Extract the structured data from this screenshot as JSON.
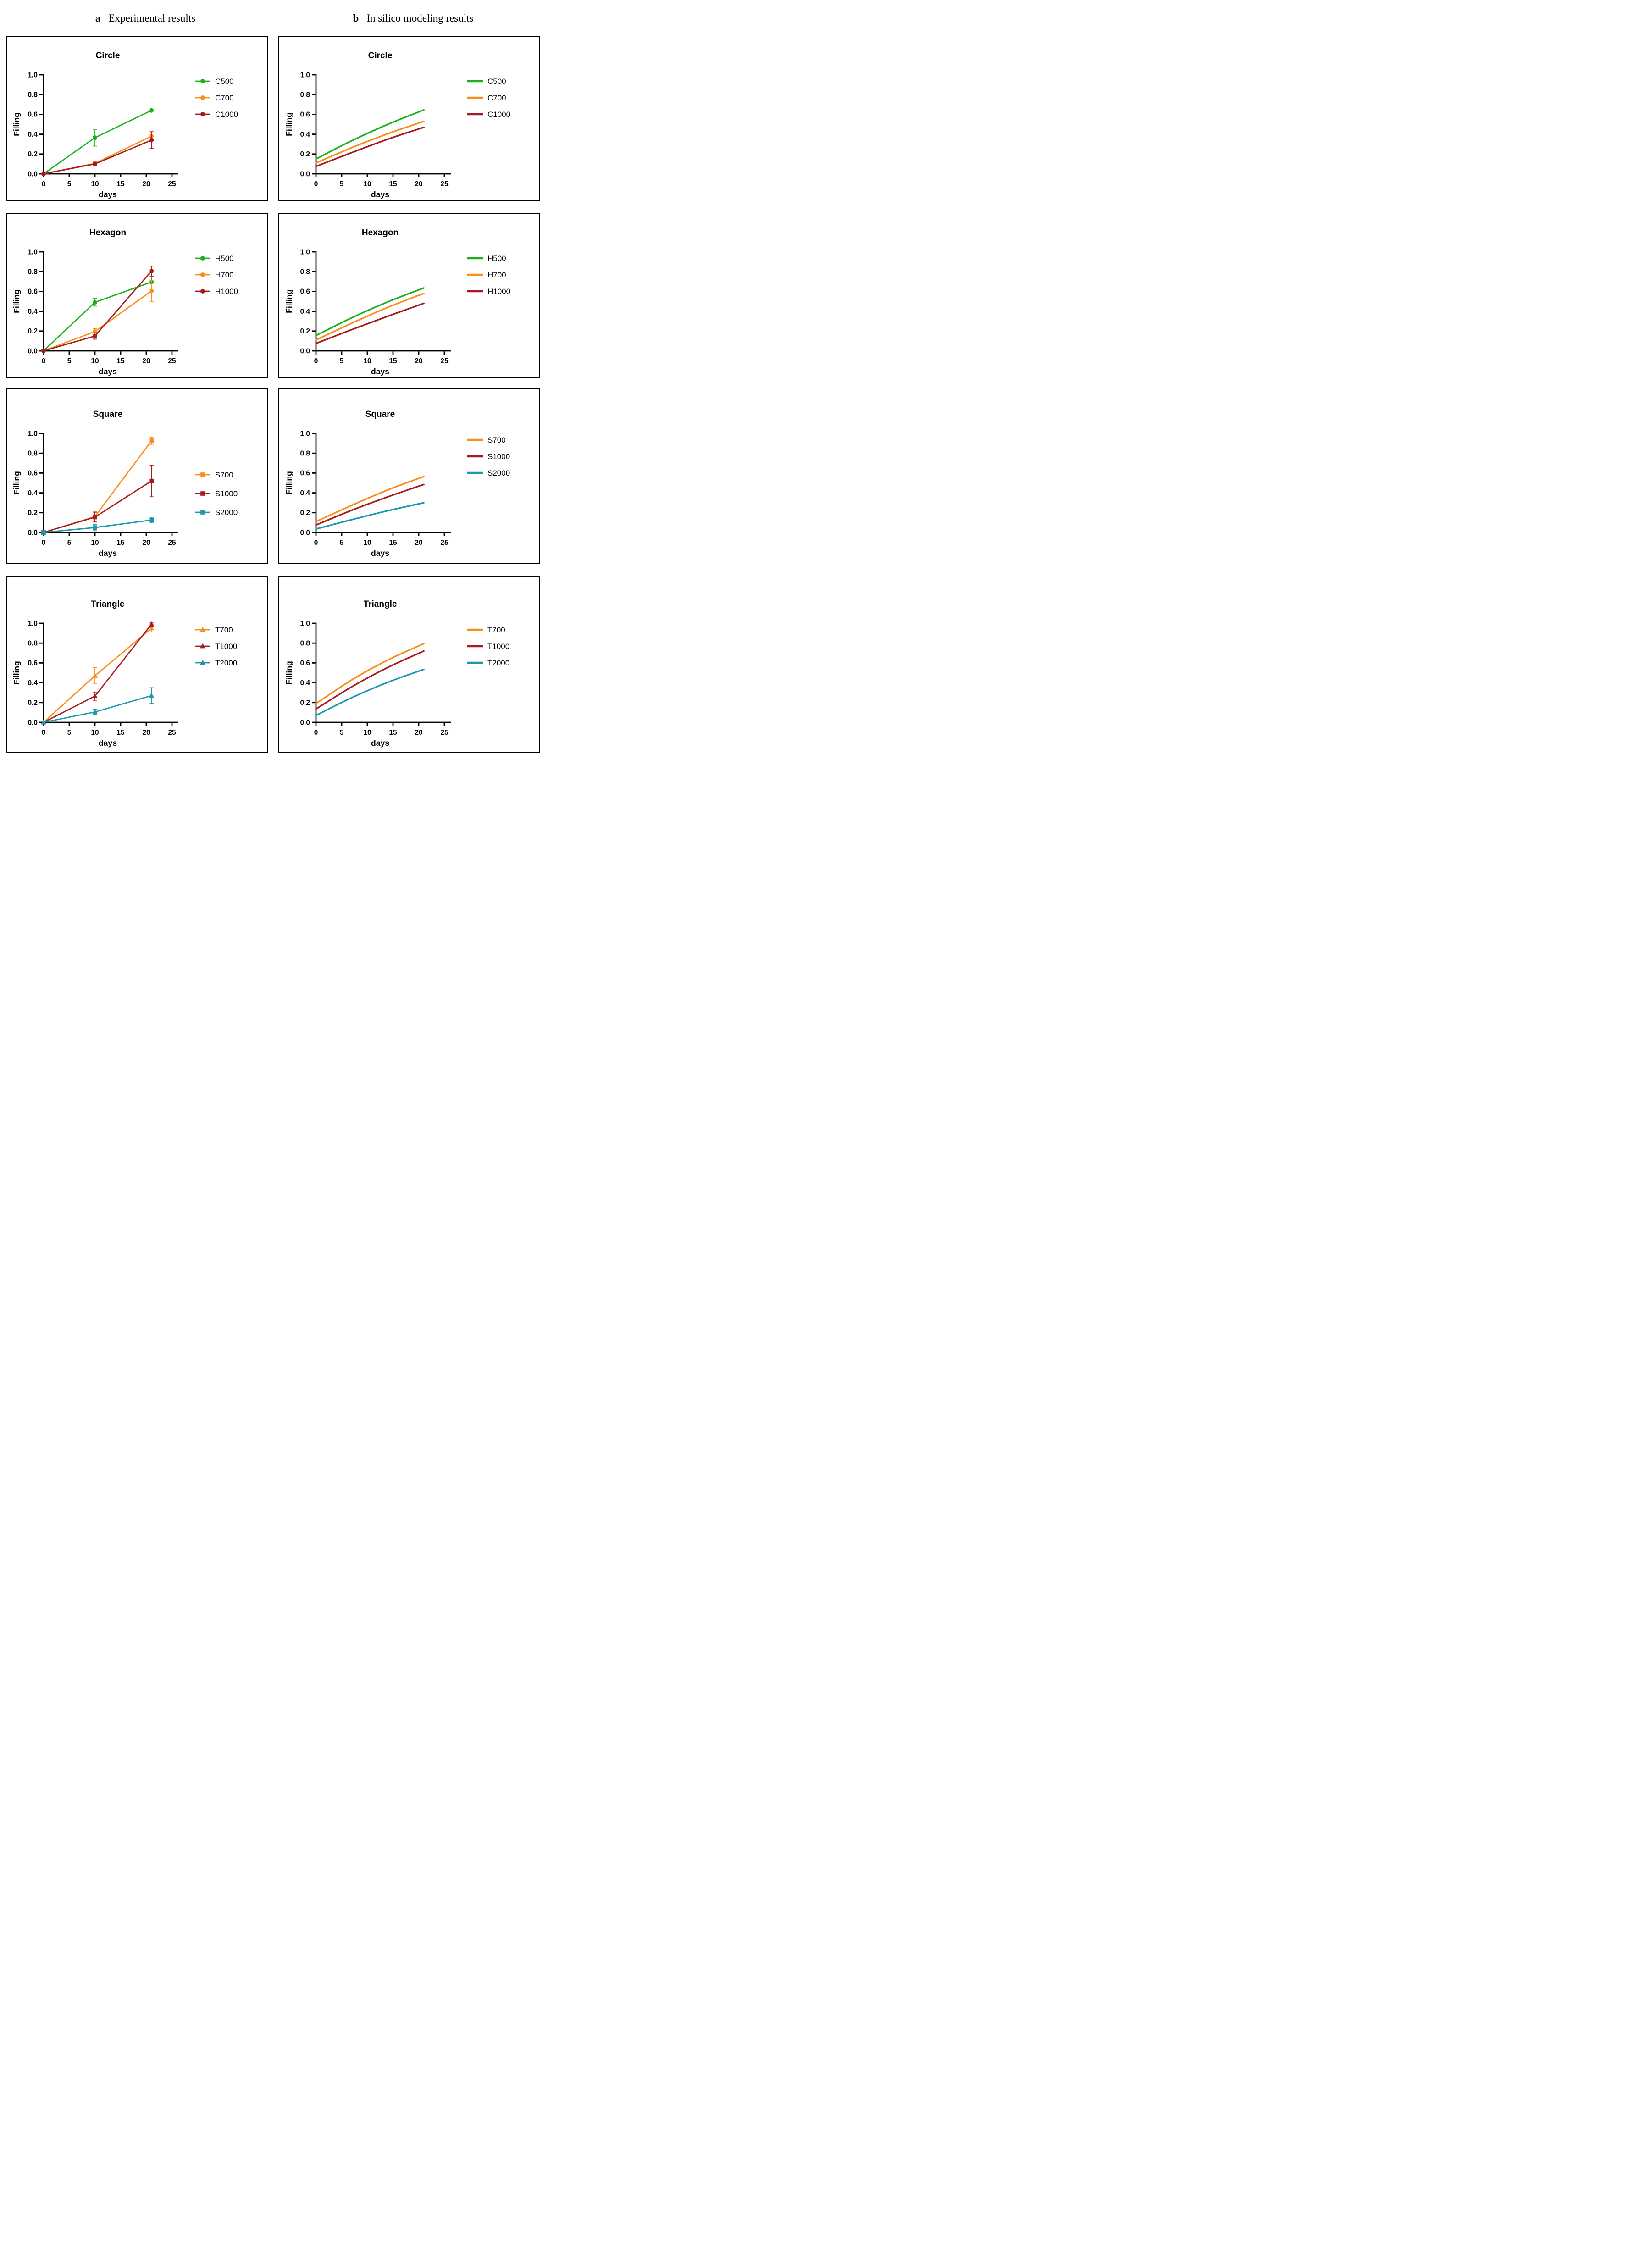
{
  "header": {
    "label_a": "a",
    "title_a": "Experimental results",
    "label_b": "b",
    "title_b": "In silico modeling results"
  },
  "colors": {
    "green": "#1CB01C",
    "orange": "#FA8E1C",
    "dark_red": "#A51C1C",
    "teal": "#1B97AE",
    "axis": "#000000",
    "text": "#000000",
    "panel_border": "#000000",
    "background": "#FFFFFF"
  },
  "chart_data": [
    {
      "id": "circle-experimental",
      "column": "a",
      "type": "line",
      "style": "experimental",
      "title": "Circle",
      "xlabel": "days",
      "ylabel": "Filling",
      "xticks": [
        0,
        5,
        10,
        15,
        20,
        25
      ],
      "ytick_labels": [
        "0.0",
        "0.2",
        "0.4",
        "0.6",
        "0.8",
        "1.0"
      ],
      "xlim": [
        0,
        26.3
      ],
      "ylim": [
        0,
        1
      ],
      "grid": false,
      "marker": "circle",
      "legend_position": "upper-right",
      "x": [
        0,
        10,
        21
      ],
      "series": [
        {
          "name": "C500",
          "color": "#1CB01C",
          "y": [
            0,
            0.365,
            0.64
          ],
          "err": [
            0,
            0.085,
            0
          ]
        },
        {
          "name": "C700",
          "color": "#FA8E1C",
          "y": [
            0,
            0.105,
            0.38
          ],
          "err": [
            0,
            0.02,
            0.045
          ]
        },
        {
          "name": "C1000",
          "color": "#A51C1C",
          "y": [
            0,
            0.1,
            0.34
          ],
          "err": [
            0,
            0.015,
            0.085
          ]
        }
      ]
    },
    {
      "id": "circle-model",
      "column": "b",
      "type": "line",
      "style": "model",
      "title": "Circle",
      "xlabel": "days",
      "ylabel": "Filling",
      "xticks": [
        0,
        5,
        10,
        15,
        20,
        25
      ],
      "ytick_labels": [
        "0.0",
        "0.2",
        "0.4",
        "0.6",
        "0.8",
        "1.0"
      ],
      "xlim": [
        0,
        26.3
      ],
      "ylim": [
        0,
        1
      ],
      "grid": false,
      "marker": null,
      "legend_position": "upper-right",
      "x": [
        0,
        7,
        14,
        21
      ],
      "series": [
        {
          "name": "C500",
          "color": "#1CB01C",
          "y": [
            0.15,
            0.335,
            0.5,
            0.645
          ]
        },
        {
          "name": "C700",
          "color": "#FA8E1C",
          "y": [
            0.11,
            0.265,
            0.405,
            0.53
          ]
        },
        {
          "name": "C1000",
          "color": "#A51C1C",
          "y": [
            0.075,
            0.215,
            0.35,
            0.47
          ]
        }
      ]
    },
    {
      "id": "hexagon-experimental",
      "column": "a",
      "type": "line",
      "style": "experimental",
      "title": "Hexagon",
      "xlabel": "days",
      "ylabel": "Filling",
      "xticks": [
        0,
        5,
        10,
        15,
        20,
        25
      ],
      "ytick_labels": [
        "0.0",
        "0.2",
        "0.4",
        "0.6",
        "0.8",
        "1.0"
      ],
      "xlim": [
        0,
        26.3
      ],
      "ylim": [
        0,
        1
      ],
      "grid": false,
      "marker": "hexagon",
      "legend_position": "upper-right",
      "x": [
        0,
        10,
        21
      ],
      "series": [
        {
          "name": "H500",
          "color": "#1CB01C",
          "y": [
            0,
            0.49,
            0.695
          ],
          "err": [
            0,
            0.038,
            0.06
          ]
        },
        {
          "name": "H700",
          "color": "#FA8E1C",
          "y": [
            0,
            0.195,
            0.605
          ],
          "err": [
            0,
            0.03,
            0.105
          ]
        },
        {
          "name": "H1000",
          "color": "#A51C1C",
          "y": [
            0,
            0.15,
            0.805
          ],
          "err": [
            0,
            0.032,
            0.05
          ]
        }
      ]
    },
    {
      "id": "hexagon-model",
      "column": "b",
      "type": "line",
      "style": "model",
      "title": "Hexagon",
      "xlabel": "days",
      "ylabel": "Filling",
      "xticks": [
        0,
        5,
        10,
        15,
        20,
        25
      ],
      "ytick_labels": [
        "0.0",
        "0.2",
        "0.4",
        "0.6",
        "0.8",
        "1.0"
      ],
      "xlim": [
        0,
        26.3
      ],
      "ylim": [
        0,
        1
      ],
      "grid": false,
      "marker": null,
      "legend_position": "upper-right",
      "x": [
        0,
        7,
        14,
        21
      ],
      "series": [
        {
          "name": "H500",
          "color": "#1CB01C",
          "y": [
            0.155,
            0.335,
            0.495,
            0.635
          ]
        },
        {
          "name": "H700",
          "color": "#FA8E1C",
          "y": [
            0.11,
            0.28,
            0.44,
            0.58
          ]
        },
        {
          "name": "H1000",
          "color": "#A51C1C",
          "y": [
            0.075,
            0.215,
            0.35,
            0.48
          ]
        }
      ]
    },
    {
      "id": "square-experimental",
      "column": "a",
      "type": "line",
      "style": "experimental",
      "title": "Square",
      "xlabel": "days",
      "ylabel": "Filling",
      "xticks": [
        0,
        5,
        10,
        15,
        20,
        25
      ],
      "ytick_labels": [
        "0.0",
        "0.2",
        "0.4",
        "0.6",
        "0.8",
        "1.0"
      ],
      "xlim": [
        0,
        26.3
      ],
      "ylim": [
        0,
        1
      ],
      "grid": false,
      "marker": "square",
      "legend_position": "middle-right",
      "x": [
        0,
        10,
        21
      ],
      "series": [
        {
          "name": "S700",
          "color": "#FA8E1C",
          "y": [
            0,
            0.16,
            0.925
          ],
          "err": [
            0,
            0.05,
            0.035
          ]
        },
        {
          "name": "S1000",
          "color": "#A51C1C",
          "y": [
            0,
            0.155,
            0.52
          ],
          "err": [
            0,
            0.05,
            0.16
          ]
        },
        {
          "name": "S2000",
          "color": "#1B97AE",
          "y": [
            0,
            0.05,
            0.125
          ],
          "err": [
            0,
            0.033,
            0.028
          ]
        }
      ]
    },
    {
      "id": "square-model",
      "column": "b",
      "type": "line",
      "style": "model",
      "title": "Square",
      "xlabel": "days",
      "ylabel": "Filling",
      "xticks": [
        0,
        5,
        10,
        15,
        20,
        25
      ],
      "ytick_labels": [
        "0.0",
        "0.2",
        "0.4",
        "0.6",
        "0.8",
        "1.0"
      ],
      "xlim": [
        0,
        26.3
      ],
      "ylim": [
        0,
        1
      ],
      "grid": false,
      "marker": null,
      "legend_position": "upper-right",
      "x": [
        0,
        7,
        14,
        21
      ],
      "series": [
        {
          "name": "S700",
          "color": "#FA8E1C",
          "y": [
            0.11,
            0.275,
            0.43,
            0.565
          ]
        },
        {
          "name": "S1000",
          "color": "#A51C1C",
          "y": [
            0.075,
            0.225,
            0.36,
            0.485
          ]
        },
        {
          "name": "S2000",
          "color": "#1B97AE",
          "y": [
            0.035,
            0.13,
            0.22,
            0.3
          ]
        }
      ]
    },
    {
      "id": "triangle-experimental",
      "column": "a",
      "type": "line",
      "style": "experimental",
      "title": "Triangle",
      "xlabel": "days",
      "ylabel": "Filling",
      "xticks": [
        0,
        5,
        10,
        15,
        20,
        25
      ],
      "ytick_labels": [
        "0.0",
        "0.2",
        "0.4",
        "0.6",
        "0.8",
        "1.0"
      ],
      "xlim": [
        0,
        26.3
      ],
      "ylim": [
        0,
        1
      ],
      "grid": false,
      "marker": "triangle",
      "legend_position": "upper-right",
      "x": [
        0,
        10,
        21
      ],
      "series": [
        {
          "name": "T700",
          "color": "#FA8E1C",
          "y": [
            0,
            0.47,
            0.95
          ],
          "err": [
            0,
            0.082,
            0.037
          ]
        },
        {
          "name": "T1000",
          "color": "#A51C1C",
          "y": [
            0,
            0.265,
            0.99
          ],
          "err": [
            0,
            0.042,
            0.02
          ]
        },
        {
          "name": "T2000",
          "color": "#1B97AE",
          "y": [
            0,
            0.105,
            0.27
          ],
          "err": [
            0,
            0.026,
            0.08
          ]
        }
      ]
    },
    {
      "id": "triangle-model",
      "column": "b",
      "type": "line",
      "style": "model",
      "title": "Triangle",
      "xlabel": "days",
      "ylabel": "Filling",
      "xticks": [
        0,
        5,
        10,
        15,
        20,
        25
      ],
      "ytick_labels": [
        "0.0",
        "0.2",
        "0.4",
        "0.6",
        "0.8",
        "1.0"
      ],
      "xlim": [
        0,
        26.3
      ],
      "ylim": [
        0,
        1
      ],
      "grid": false,
      "marker": null,
      "legend_position": "upper-right",
      "x": [
        0,
        7,
        14,
        21
      ],
      "series": [
        {
          "name": "T700",
          "color": "#FA8E1C",
          "y": [
            0.19,
            0.43,
            0.63,
            0.795
          ]
        },
        {
          "name": "T1000",
          "color": "#A51C1C",
          "y": [
            0.135,
            0.36,
            0.555,
            0.72
          ]
        },
        {
          "name": "T2000",
          "color": "#1B97AE",
          "y": [
            0.07,
            0.25,
            0.405,
            0.535
          ]
        }
      ]
    }
  ]
}
